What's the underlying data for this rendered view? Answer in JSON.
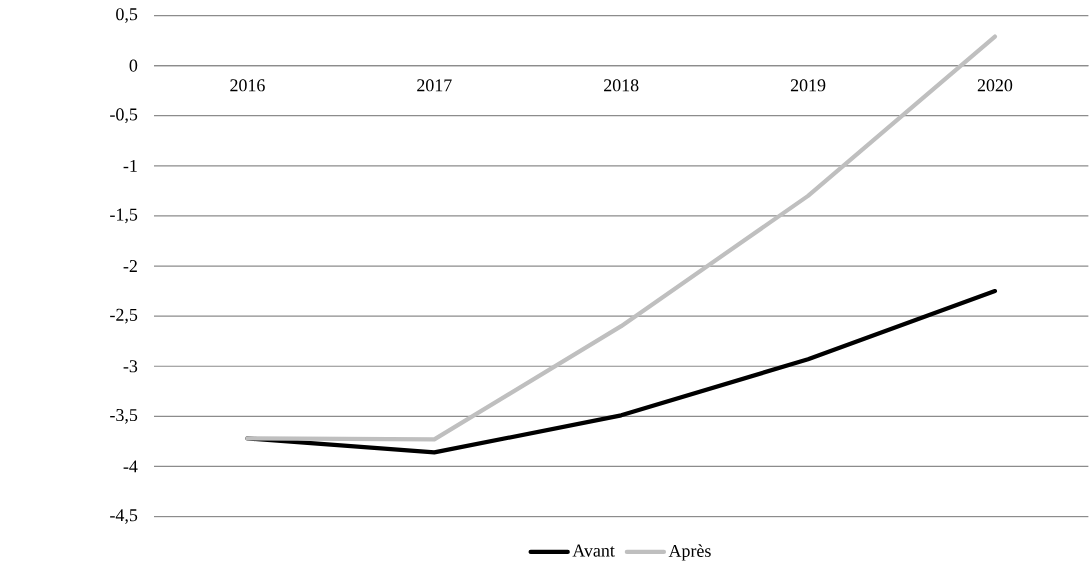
{
  "chart_data": {
    "type": "line",
    "categories": [
      "2016",
      "2017",
      "2018",
      "2019",
      "2020"
    ],
    "series": [
      {
        "name": "Avant",
        "color": "#000000",
        "values": [
          -3.72,
          -3.86,
          -3.49,
          -2.93,
          -2.25
        ]
      },
      {
        "name": "Après",
        "color": "#bfbfbf",
        "values": [
          -3.72,
          -3.73,
          -2.6,
          -1.3,
          0.29
        ]
      }
    ],
    "ylim": [
      -4.5,
      0.5
    ],
    "yticks": [
      {
        "value": -4.5,
        "label": "-4,5"
      },
      -4,
      {
        "value": -3.5,
        "label": "-3,5"
      },
      -3,
      {
        "value": -2.5,
        "label": "-2,5"
      },
      -2,
      {
        "value": -1.5,
        "label": "-1,5"
      },
      -1,
      {
        "value": -0.5,
        "label": "-0,5"
      },
      0,
      {
        "value": 0.5,
        "label": "0,5"
      }
    ],
    "grid": "y",
    "legend": "bottom",
    "marker": "none",
    "line_style": "solid"
  }
}
